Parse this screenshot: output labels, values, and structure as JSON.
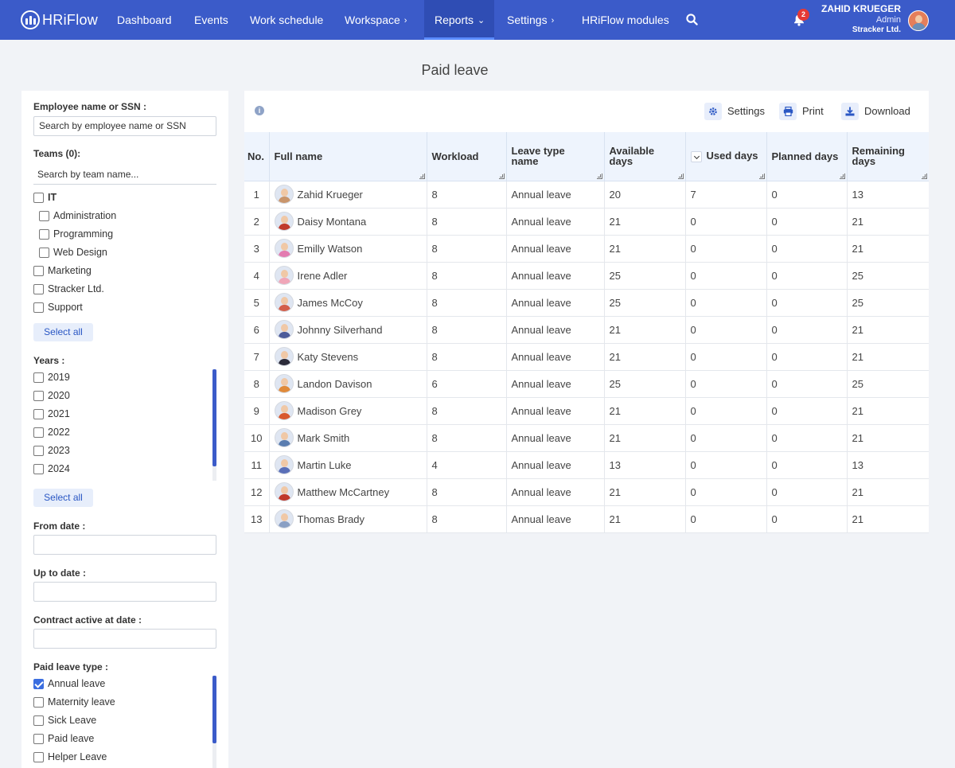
{
  "app": {
    "logo": "HRiFlow"
  },
  "nav": {
    "items": [
      {
        "label": "Dashboard"
      },
      {
        "label": "Events"
      },
      {
        "label": "Work schedule"
      },
      {
        "label": "Workspace"
      },
      {
        "label": "Reports"
      },
      {
        "label": "Settings"
      },
      {
        "label": "HRiFlow modules"
      }
    ],
    "notifications": "2",
    "user": {
      "name": "ZAHID KRUEGER",
      "role": "Admin",
      "company": "Stracker Ltd."
    }
  },
  "page": {
    "title": "Paid leave"
  },
  "filters": {
    "employee_label": "Employee name or SSN :",
    "employee_placeholder": "Search by employee name or SSN",
    "teams_label": "Teams (0):",
    "teams_placeholder": "Search by team name...",
    "teams": [
      {
        "label": "IT"
      },
      {
        "label": "Administration"
      },
      {
        "label": "Programming"
      },
      {
        "label": "Web Design"
      },
      {
        "label": "Marketing"
      },
      {
        "label": "Stracker Ltd."
      },
      {
        "label": "Support"
      }
    ],
    "select_all": "Select all",
    "years_label": "Years :",
    "years": [
      "2019",
      "2020",
      "2021",
      "2022",
      "2023",
      "2024"
    ],
    "from_label": "From date :",
    "upto_label": "Up to date :",
    "contract_label": "Contract active at date :",
    "leave_type_label": "Paid leave type :",
    "leave_types": [
      "Annual leave",
      "Maternity leave",
      "Sick Leave",
      "Paid leave",
      "Helper Leave"
    ]
  },
  "toolbar": {
    "settings": "Settings",
    "print": "Print",
    "download": "Download"
  },
  "table": {
    "headers": {
      "no": "No.",
      "name": "Full name",
      "workload": "Workload",
      "type": "Leave type name",
      "available": "Available days",
      "used": "Used days",
      "planned": "Planned days",
      "remaining": "Remaining days"
    },
    "rows": [
      [
        "1",
        "Zahid Krueger",
        "8",
        "Annual leave",
        "20",
        "7",
        "0",
        "13"
      ],
      [
        "2",
        "Daisy Montana",
        "8",
        "Annual leave",
        "21",
        "0",
        "0",
        "21"
      ],
      [
        "3",
        "Emilly Watson",
        "8",
        "Annual leave",
        "21",
        "0",
        "0",
        "21"
      ],
      [
        "4",
        "Irene Adler",
        "8",
        "Annual leave",
        "25",
        "0",
        "0",
        "25"
      ],
      [
        "5",
        "James McCoy",
        "8",
        "Annual leave",
        "25",
        "0",
        "0",
        "25"
      ],
      [
        "6",
        "Johnny Silverhand",
        "8",
        "Annual leave",
        "21",
        "0",
        "0",
        "21"
      ],
      [
        "7",
        "Katy Stevens",
        "8",
        "Annual leave",
        "21",
        "0",
        "0",
        "21"
      ],
      [
        "8",
        "Landon Davison",
        "6",
        "Annual leave",
        "25",
        "0",
        "0",
        "25"
      ],
      [
        "9",
        "Madison Grey",
        "8",
        "Annual leave",
        "21",
        "0",
        "0",
        "21"
      ],
      [
        "10",
        "Mark Smith",
        "8",
        "Annual leave",
        "21",
        "0",
        "0",
        "21"
      ],
      [
        "11",
        "Martin Luke",
        "4",
        "Annual leave",
        "13",
        "0",
        "0",
        "13"
      ],
      [
        "12",
        "Matthew McCartney",
        "8",
        "Annual leave",
        "21",
        "0",
        "0",
        "21"
      ],
      [
        "13",
        "Thomas Brady",
        "8",
        "Annual leave",
        "21",
        "0",
        "0",
        "21"
      ]
    ]
  },
  "colors": {
    "navbar": "#3b5bc9",
    "accent": "#3b6ee0",
    "header_bg": "#eef4fd"
  }
}
